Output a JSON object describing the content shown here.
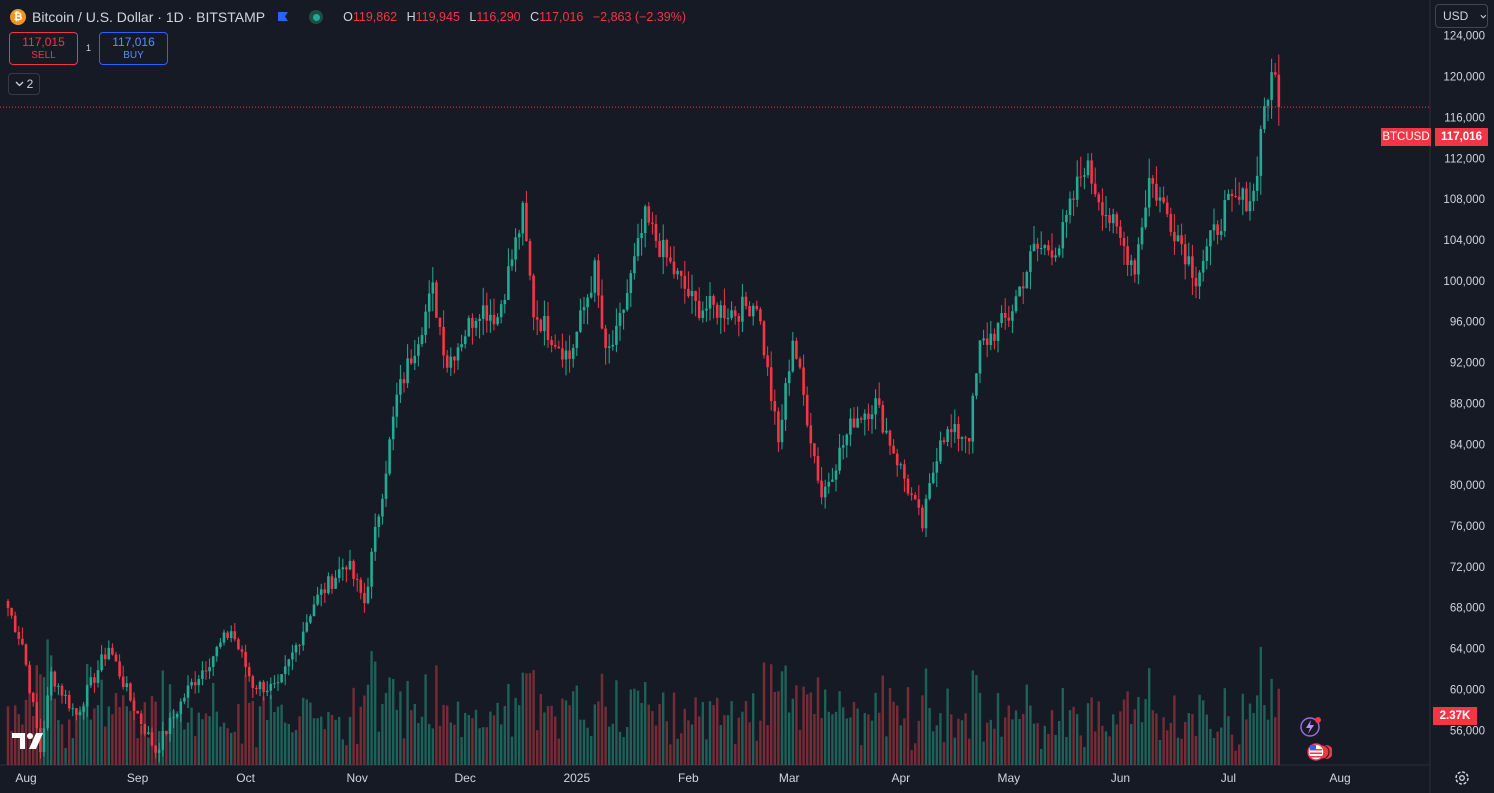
{
  "header": {
    "title": "Bitcoin / U.S. Dollar · 1D · BITSTAMP",
    "o_label": "O",
    "o_value": "119,862",
    "h_label": "H",
    "h_value": "119,945",
    "l_label": "L",
    "l_value": "116,290",
    "c_label": "C",
    "c_value": "117,016",
    "change": "−2,863 (−2.39%)"
  },
  "trade": {
    "sell_price": "117,015",
    "sell_label": "SELL",
    "spread": "1",
    "buy_price": "117,016",
    "buy_label": "BUY"
  },
  "indicators_toggle": "2",
  "currency_select": "USD",
  "symbol_tag": "BTCUSD",
  "last_price_tag": "117,016",
  "volume_tag": "2.37K",
  "colors": {
    "up": "#22ab94",
    "down": "#f23645",
    "background": "#161a25",
    "accent": "#2962ff"
  },
  "icons": [
    "btc-logo-icon",
    "flag-icon",
    "market-status-icon",
    "chevron-down-icon",
    "tradingview-logo-icon",
    "gear-icon",
    "lightning-icon",
    "us-flag-icon"
  ],
  "chart_data": {
    "type": "candlestick",
    "ylim": [
      52600,
      127500
    ],
    "y_ticks": [
      56000,
      60000,
      64000,
      68000,
      72000,
      76000,
      80000,
      84000,
      88000,
      92000,
      96000,
      100000,
      104000,
      108000,
      112000,
      116000,
      120000,
      124000
    ],
    "y_tick_labels": [
      "56,000",
      "60,000",
      "64,000",
      "68,000",
      "72,000",
      "76,000",
      "80,000",
      "84,000",
      "88,000",
      "92,000",
      "96,000",
      "100,000",
      "104,000",
      "108,000",
      "112,000",
      "116,000",
      "120,000",
      "124,000"
    ],
    "x_tick_labels": [
      "Aug",
      "Sep",
      "Oct",
      "Nov",
      "Dec",
      "2025",
      "Feb",
      "Mar",
      "Apr",
      "May",
      "Jun",
      "Jul",
      "Aug"
    ],
    "x_tick_dates": [
      "2024-08-01",
      "2024-09-01",
      "2024-10-01",
      "2024-11-01",
      "2024-12-01",
      "2025-01-01",
      "2025-02-01",
      "2025-03-01",
      "2025-04-01",
      "2025-05-01",
      "2025-06-01",
      "2025-07-01",
      "2025-08-01"
    ],
    "start_date": "2024-07-27",
    "last_price": 117016,
    "close_anchors": [
      [
        "2024-07-27",
        68000
      ],
      [
        "2024-07-31",
        64500
      ],
      [
        "2024-08-05",
        54000
      ],
      [
        "2024-08-08",
        61500
      ],
      [
        "2024-08-15",
        57500
      ],
      [
        "2024-08-24",
        64200
      ],
      [
        "2024-08-30",
        59000
      ],
      [
        "2024-09-06",
        54000
      ],
      [
        "2024-09-15",
        60000
      ],
      [
        "2024-09-27",
        65800
      ],
      [
        "2024-10-03",
        60500
      ],
      [
        "2024-10-10",
        60000
      ],
      [
        "2024-10-20",
        68500
      ],
      [
        "2024-10-29",
        72500
      ],
      [
        "2024-11-03",
        68500
      ],
      [
        "2024-11-12",
        88500
      ],
      [
        "2024-11-22",
        99000
      ],
      [
        "2024-11-26",
        92000
      ],
      [
        "2024-12-05",
        97500
      ],
      [
        "2024-12-10",
        96500
      ],
      [
        "2024-12-17",
        106500
      ],
      [
        "2024-12-20",
        97000
      ],
      [
        "2024-12-30",
        92500
      ],
      [
        "2025-01-06",
        101000
      ],
      [
        "2025-01-09",
        92500
      ],
      [
        "2025-01-12",
        94500
      ],
      [
        "2025-01-20",
        106000
      ],
      [
        "2025-01-27",
        101500
      ],
      [
        "2025-02-03",
        97500
      ],
      [
        "2025-02-14",
        97000
      ],
      [
        "2025-02-20",
        98000
      ],
      [
        "2025-02-26",
        84000
      ],
      [
        "2025-03-02",
        94500
      ],
      [
        "2025-03-10",
        79000
      ],
      [
        "2025-03-19",
        86500
      ],
      [
        "2025-03-25",
        88000
      ],
      [
        "2025-03-31",
        82500
      ],
      [
        "2025-04-07",
        76000
      ],
      [
        "2025-04-12",
        85000
      ],
      [
        "2025-04-20",
        85000
      ],
      [
        "2025-04-23",
        93500
      ],
      [
        "2025-05-01",
        96500
      ],
      [
        "2025-05-08",
        103000
      ],
      [
        "2025-05-15",
        103500
      ],
      [
        "2025-05-22",
        111500
      ],
      [
        "2025-05-31",
        104500
      ],
      [
        "2025-06-05",
        101500
      ],
      [
        "2025-06-09",
        110000
      ],
      [
        "2025-06-17",
        104500
      ],
      [
        "2025-06-22",
        100500
      ],
      [
        "2025-06-30",
        107000
      ],
      [
        "2025-07-08",
        108500
      ],
      [
        "2025-07-11",
        117500
      ],
      [
        "2025-07-14",
        119900
      ],
      [
        "2025-07-15",
        117016
      ]
    ]
  }
}
